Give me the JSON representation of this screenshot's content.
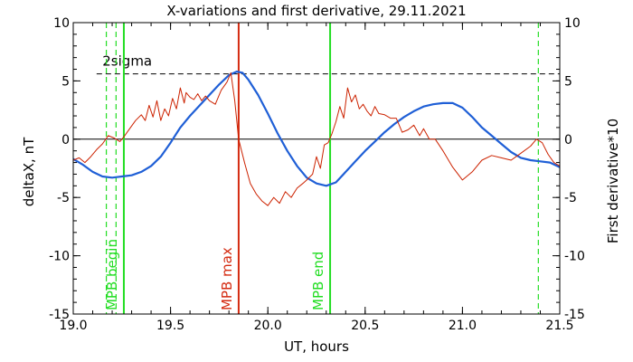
{
  "chart_data": {
    "type": "line",
    "title": "X-variations and first derivative, 29.11.2021",
    "xlabel": "UT, hours",
    "ylabel_left": "deltaX, nT",
    "ylabel_right": "First derivative*10",
    "xlim": [
      19.0,
      21.5
    ],
    "ylim": [
      -15,
      10
    ],
    "x_ticks": [
      "19.0",
      "19.5",
      "20.0",
      "20.5",
      "21.0",
      "21.5"
    ],
    "y_ticks": [
      "10",
      "5",
      "0",
      "-5",
      "-10",
      "-15"
    ],
    "grid": false,
    "colors": {
      "deltaX": "#1f5fd6",
      "derivative": "#cc2200",
      "mpb_begin_end": "#22dd22",
      "mpb_max": "#d42a10",
      "threshold": "#000000"
    },
    "threshold": {
      "label": "2sigma",
      "y": 5.6
    },
    "zero_line": 0,
    "vertical_lines": [
      {
        "label": "",
        "x": 19.17,
        "style": "dashed",
        "color_key": "mpb_begin_end"
      },
      {
        "label": "",
        "x": 19.22,
        "style": "dashed",
        "color_key": "mpb_begin_end"
      },
      {
        "label": "MPB begin",
        "x": 19.26,
        "style": "solid",
        "color_key": "mpb_begin_end"
      },
      {
        "label": "MPB max",
        "x": 19.85,
        "style": "solid",
        "color_key": "mpb_max"
      },
      {
        "label": "MPB end",
        "x": 20.32,
        "style": "solid",
        "color_key": "mpb_begin_end"
      },
      {
        "label": "",
        "x": 21.39,
        "style": "dashed",
        "color_key": "mpb_begin_end"
      }
    ],
    "series": [
      {
        "name": "deltaX, nT",
        "color_key": "deltaX",
        "points": [
          [
            19.0,
            -1.7
          ],
          [
            19.05,
            -2.2
          ],
          [
            19.1,
            -2.8
          ],
          [
            19.15,
            -3.2
          ],
          [
            19.2,
            -3.3
          ],
          [
            19.25,
            -3.2
          ],
          [
            19.3,
            -3.1
          ],
          [
            19.35,
            -2.8
          ],
          [
            19.4,
            -2.3
          ],
          [
            19.45,
            -1.5
          ],
          [
            19.5,
            -0.3
          ],
          [
            19.55,
            1.0
          ],
          [
            19.6,
            2.0
          ],
          [
            19.65,
            2.9
          ],
          [
            19.7,
            3.8
          ],
          [
            19.75,
            4.7
          ],
          [
            19.8,
            5.5
          ],
          [
            19.84,
            5.8
          ],
          [
            19.87,
            5.7
          ],
          [
            19.9,
            5.1
          ],
          [
            19.95,
            3.8
          ],
          [
            20.0,
            2.2
          ],
          [
            20.05,
            0.5
          ],
          [
            20.1,
            -1.0
          ],
          [
            20.15,
            -2.3
          ],
          [
            20.2,
            -3.3
          ],
          [
            20.25,
            -3.8
          ],
          [
            20.3,
            -4.0
          ],
          [
            20.35,
            -3.7
          ],
          [
            20.4,
            -2.8
          ],
          [
            20.45,
            -1.9
          ],
          [
            20.5,
            -1.0
          ],
          [
            20.55,
            -0.2
          ],
          [
            20.6,
            0.6
          ],
          [
            20.65,
            1.3
          ],
          [
            20.7,
            1.9
          ],
          [
            20.75,
            2.4
          ],
          [
            20.8,
            2.8
          ],
          [
            20.85,
            3.0
          ],
          [
            20.9,
            3.1
          ],
          [
            20.95,
            3.1
          ],
          [
            21.0,
            2.7
          ],
          [
            21.05,
            1.9
          ],
          [
            21.1,
            1.0
          ],
          [
            21.15,
            0.3
          ],
          [
            21.2,
            -0.4
          ],
          [
            21.25,
            -1.1
          ],
          [
            21.3,
            -1.6
          ],
          [
            21.35,
            -1.8
          ],
          [
            21.4,
            -1.9
          ],
          [
            21.45,
            -2.0
          ],
          [
            21.5,
            -2.4
          ]
        ]
      },
      {
        "name": "First derivative*10",
        "color_key": "derivative",
        "points": [
          [
            19.0,
            -1.8
          ],
          [
            19.03,
            -1.6
          ],
          [
            19.06,
            -2.0
          ],
          [
            19.09,
            -1.5
          ],
          [
            19.12,
            -0.9
          ],
          [
            19.15,
            -0.4
          ],
          [
            19.18,
            0.3
          ],
          [
            19.21,
            0.1
          ],
          [
            19.24,
            -0.2
          ],
          [
            19.26,
            0.2
          ],
          [
            19.29,
            0.9
          ],
          [
            19.32,
            1.6
          ],
          [
            19.35,
            2.1
          ],
          [
            19.37,
            1.6
          ],
          [
            19.39,
            2.9
          ],
          [
            19.41,
            1.9
          ],
          [
            19.43,
            3.3
          ],
          [
            19.45,
            1.6
          ],
          [
            19.47,
            2.6
          ],
          [
            19.49,
            2.0
          ],
          [
            19.51,
            3.5
          ],
          [
            19.53,
            2.6
          ],
          [
            19.55,
            4.4
          ],
          [
            19.57,
            3.1
          ],
          [
            19.58,
            4.0
          ],
          [
            19.6,
            3.6
          ],
          [
            19.62,
            3.4
          ],
          [
            19.64,
            3.9
          ],
          [
            19.66,
            3.3
          ],
          [
            19.68,
            3.7
          ],
          [
            19.7,
            3.3
          ],
          [
            19.73,
            3.0
          ],
          [
            19.76,
            4.2
          ],
          [
            19.79,
            4.9
          ],
          [
            19.81,
            5.7
          ],
          [
            19.83,
            3.3
          ],
          [
            19.85,
            0.0
          ],
          [
            19.88,
            -2.0
          ],
          [
            19.91,
            -3.8
          ],
          [
            19.94,
            -4.7
          ],
          [
            19.97,
            -5.3
          ],
          [
            20.0,
            -5.7
          ],
          [
            20.03,
            -5.0
          ],
          [
            20.06,
            -5.5
          ],
          [
            20.09,
            -4.5
          ],
          [
            20.12,
            -5.0
          ],
          [
            20.15,
            -4.2
          ],
          [
            20.18,
            -3.8
          ],
          [
            20.2,
            -3.5
          ],
          [
            20.23,
            -3.0
          ],
          [
            20.25,
            -1.5
          ],
          [
            20.27,
            -2.5
          ],
          [
            20.29,
            -0.5
          ],
          [
            20.31,
            -0.3
          ],
          [
            20.33,
            0.5
          ],
          [
            20.35,
            1.5
          ],
          [
            20.37,
            2.8
          ],
          [
            20.39,
            1.8
          ],
          [
            20.41,
            4.4
          ],
          [
            20.43,
            3.2
          ],
          [
            20.45,
            3.8
          ],
          [
            20.47,
            2.6
          ],
          [
            20.49,
            3.0
          ],
          [
            20.51,
            2.4
          ],
          [
            20.53,
            2.0
          ],
          [
            20.55,
            2.8
          ],
          [
            20.57,
            2.2
          ],
          [
            20.6,
            2.1
          ],
          [
            20.63,
            1.8
          ],
          [
            20.66,
            1.8
          ],
          [
            20.69,
            0.6
          ],
          [
            20.72,
            0.8
          ],
          [
            20.75,
            1.2
          ],
          [
            20.78,
            0.3
          ],
          [
            20.8,
            0.9
          ],
          [
            20.83,
            0.0
          ],
          [
            20.86,
            0.0
          ],
          [
            20.9,
            -1.0
          ],
          [
            20.95,
            -2.4
          ],
          [
            21.0,
            -3.5
          ],
          [
            21.05,
            -2.8
          ],
          [
            21.1,
            -1.8
          ],
          [
            21.15,
            -1.4
          ],
          [
            21.2,
            -1.6
          ],
          [
            21.25,
            -1.8
          ],
          [
            21.3,
            -1.2
          ],
          [
            21.35,
            -0.6
          ],
          [
            21.38,
            0.0
          ],
          [
            21.41,
            -0.3
          ],
          [
            21.44,
            -1.3
          ],
          [
            21.47,
            -2.0
          ],
          [
            21.5,
            -2.3
          ]
        ]
      }
    ]
  }
}
